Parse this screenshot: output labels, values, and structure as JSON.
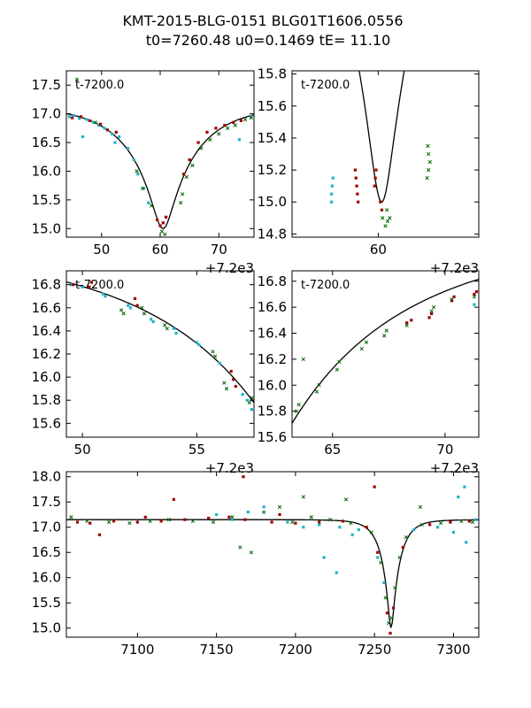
{
  "figure": {
    "title_line1": "KMT-2015-BLG-0151 BLG01T1606.0556",
    "title_line2": "t0=7260.48 u0=0.1469 tE=  11.10"
  },
  "model": {
    "t0": 7260.48,
    "u0": 0.1469,
    "tE": 11.1,
    "mag_base": 17.15,
    "mag_peak_approx": 15.0
  },
  "colors": {
    "green": "#006400",
    "red": "#a00000",
    "cyan": "#1fb4c8",
    "model": "#000000"
  },
  "chart_data": [
    {
      "id": "panel-top-left",
      "type": "scatter",
      "label": "t-7200.0",
      "offset_text": "+7.2e3",
      "xlim": [
        44,
        76
      ],
      "ylim": [
        17.75,
        14.85
      ],
      "xticks": [
        50,
        60,
        70
      ],
      "yticks": [
        15.0,
        15.5,
        16.0,
        16.5,
        17.0,
        17.5
      ],
      "ytick_labels": [
        "15.0",
        "15.5",
        "16.0",
        "16.5",
        "17.0",
        "17.5"
      ],
      "series": [
        {
          "name": "cyan",
          "color": "cyan",
          "points": [
            [
              44.5,
              16.95
            ],
            [
              45.3,
              16.97
            ],
            [
              46.2,
              16.92
            ],
            [
              47.5,
              16.9
            ],
            [
              48.6,
              16.85
            ],
            [
              49.5,
              16.8
            ],
            [
              50.5,
              16.75
            ],
            [
              51.8,
              16.65
            ],
            [
              53.0,
              16.6
            ],
            [
              54.5,
              16.4
            ],
            [
              55.5,
              16.2
            ],
            [
              56.2,
              15.95
            ],
            [
              57.2,
              15.7
            ],
            [
              58.0,
              15.45
            ],
            [
              46.8,
              16.6
            ],
            [
              52.3,
              16.5
            ],
            [
              73.5,
              16.55
            ],
            [
              75.5,
              16.95
            ]
          ]
        },
        {
          "name": "red",
          "color": "red",
          "points": [
            [
              45.0,
              16.93
            ],
            [
              46.5,
              16.95
            ],
            [
              48.0,
              16.88
            ],
            [
              49.8,
              16.82
            ],
            [
              51.0,
              16.72
            ],
            [
              52.5,
              16.68
            ],
            [
              59.5,
              15.15
            ],
            [
              60.0,
              15.05
            ],
            [
              60.5,
              15.1
            ],
            [
              61.0,
              15.2
            ],
            [
              64.0,
              15.95
            ],
            [
              65.0,
              16.2
            ],
            [
              66.5,
              16.5
            ],
            [
              68.0,
              16.68
            ],
            [
              69.5,
              16.75
            ],
            [
              71.0,
              16.8
            ],
            [
              72.5,
              16.85
            ],
            [
              73.8,
              16.88
            ]
          ]
        },
        {
          "name": "green",
          "color": "green",
          "points": [
            [
              56.0,
              16.0
            ],
            [
              57.0,
              15.7
            ],
            [
              58.5,
              15.4
            ],
            [
              60.3,
              14.95
            ],
            [
              60.8,
              14.9
            ],
            [
              63.5,
              15.45
            ],
            [
              63.8,
              15.6
            ],
            [
              64.5,
              15.9
            ],
            [
              65.5,
              16.1
            ],
            [
              67.0,
              16.4
            ],
            [
              68.5,
              16.55
            ],
            [
              70.0,
              16.65
            ],
            [
              71.5,
              16.75
            ],
            [
              72.8,
              16.8
            ],
            [
              74.5,
              16.9
            ],
            [
              75.5,
              16.93
            ],
            [
              45.8,
              17.6
            ],
            [
              49.0,
              16.85
            ]
          ]
        }
      ]
    },
    {
      "id": "panel-top-right",
      "type": "scatter",
      "label": "t-7200.0",
      "offset_text": "+7.2e3",
      "xlim": [
        48,
        74
      ],
      "ylim": [
        15.82,
        14.78
      ],
      "xticks": [
        60
      ],
      "yticks": [
        14.8,
        15.0,
        15.2,
        15.4,
        15.6,
        15.8
      ],
      "ytick_labels": [
        "14.8",
        "15.0",
        "15.2",
        "15.4",
        "15.6",
        "15.8"
      ],
      "series": [
        {
          "name": "cyan",
          "color": "cyan",
          "points": [
            [
              53.5,
              15.05
            ],
            [
              53.6,
              15.1
            ],
            [
              53.7,
              15.15
            ],
            [
              53.5,
              15.0
            ]
          ]
        },
        {
          "name": "red",
          "color": "red",
          "points": [
            [
              56.8,
              15.2
            ],
            [
              56.9,
              15.15
            ],
            [
              57.0,
              15.1
            ],
            [
              57.1,
              15.05
            ],
            [
              57.2,
              15.0
            ],
            [
              59.5,
              15.1
            ],
            [
              59.6,
              15.15
            ],
            [
              59.7,
              15.2
            ],
            [
              60.3,
              15.0
            ],
            [
              60.5,
              14.95
            ]
          ]
        },
        {
          "name": "green",
          "color": "green",
          "points": [
            [
              60.6,
              14.9
            ],
            [
              61.0,
              14.85
            ],
            [
              61.3,
              14.88
            ],
            [
              61.6,
              14.9
            ],
            [
              61.2,
              14.95
            ],
            [
              66.8,
              15.15
            ],
            [
              67.0,
              15.2
            ],
            [
              67.2,
              15.25
            ],
            [
              67.0,
              15.3
            ],
            [
              66.9,
              15.35
            ]
          ]
        }
      ]
    },
    {
      "id": "panel-mid-left",
      "type": "scatter",
      "label": "t-7200.0",
      "offset_text": "+7.2e3",
      "xlim": [
        49.3,
        57.5
      ],
      "ylim": [
        16.92,
        15.48
      ],
      "xticks": [
        50,
        55
      ],
      "yticks": [
        15.6,
        15.8,
        16.0,
        16.2,
        16.4,
        16.6,
        16.8
      ],
      "ytick_labels": [
        "15.6",
        "15.8",
        "16.0",
        "16.2",
        "16.4",
        "16.6",
        "16.8"
      ],
      "series": [
        {
          "name": "cyan",
          "color": "cyan",
          "points": [
            [
              49.5,
              16.8
            ],
            [
              50.0,
              16.78
            ],
            [
              50.9,
              16.72
            ],
            [
              51.0,
              16.7
            ],
            [
              52.0,
              16.62
            ],
            [
              52.1,
              16.6
            ],
            [
              53.0,
              16.5
            ],
            [
              53.1,
              16.48
            ],
            [
              54.0,
              16.42
            ],
            [
              54.1,
              16.38
            ],
            [
              55.0,
              16.3
            ],
            [
              55.1,
              16.28
            ],
            [
              56.0,
              16.12
            ],
            [
              57.0,
              15.85
            ],
            [
              57.2,
              15.8
            ],
            [
              57.4,
              15.72
            ]
          ]
        },
        {
          "name": "red",
          "color": "red",
          "points": [
            [
              49.6,
              16.8
            ],
            [
              50.3,
              16.78
            ],
            [
              50.4,
              16.82
            ],
            [
              52.3,
              16.68
            ],
            [
              52.4,
              16.62
            ],
            [
              56.5,
              16.05
            ],
            [
              56.6,
              15.98
            ],
            [
              56.7,
              15.92
            ]
          ]
        },
        {
          "name": "green",
          "color": "green",
          "points": [
            [
              51.7,
              16.58
            ],
            [
              51.8,
              16.55
            ],
            [
              52.6,
              16.6
            ],
            [
              52.7,
              16.55
            ],
            [
              53.6,
              16.45
            ],
            [
              53.7,
              16.42
            ],
            [
              55.7,
              16.22
            ],
            [
              55.8,
              16.18
            ],
            [
              56.2,
              15.95
            ],
            [
              56.3,
              15.9
            ],
            [
              57.3,
              15.78
            ],
            [
              57.4,
              15.82
            ]
          ]
        }
      ]
    },
    {
      "id": "panel-mid-right",
      "type": "scatter",
      "label": "t-7200.0",
      "offset_text": "+7.2e3",
      "xlim": [
        63.2,
        71.5
      ],
      "ylim": [
        16.88,
        15.6
      ],
      "xticks": [
        65,
        70
      ],
      "yticks": [
        15.6,
        15.8,
        16.0,
        16.2,
        16.4,
        16.6,
        16.8
      ],
      "ytick_labels": [
        "15.6",
        "15.8",
        "16.0",
        "16.2",
        "16.4",
        "16.6",
        "16.8"
      ],
      "series": [
        {
          "name": "cyan",
          "color": "cyan",
          "points": [
            [
              71.3,
              16.62
            ]
          ]
        },
        {
          "name": "red",
          "color": "red",
          "points": [
            [
              68.3,
              16.48
            ],
            [
              68.5,
              16.5
            ],
            [
              69.3,
              16.52
            ],
            [
              69.4,
              16.55
            ],
            [
              70.3,
              16.65
            ],
            [
              70.4,
              16.68
            ],
            [
              71.3,
              16.7
            ],
            [
              71.4,
              16.72
            ]
          ]
        },
        {
          "name": "green",
          "color": "green",
          "points": [
            [
              63.4,
              15.8
            ],
            [
              63.5,
              15.85
            ],
            [
              64.3,
              15.95
            ],
            [
              64.4,
              16.0
            ],
            [
              65.2,
              16.12
            ],
            [
              65.3,
              16.18
            ],
            [
              66.3,
              16.28
            ],
            [
              66.5,
              16.33
            ],
            [
              67.3,
              16.38
            ],
            [
              67.4,
              16.42
            ],
            [
              68.3,
              16.46
            ],
            [
              69.4,
              16.57
            ],
            [
              69.5,
              16.6
            ],
            [
              70.3,
              16.66
            ],
            [
              71.3,
              16.68
            ],
            [
              63.7,
              16.2
            ]
          ]
        }
      ]
    },
    {
      "id": "panel-bottom",
      "type": "scatter",
      "label": "",
      "offset_text": "",
      "xlim": [
        7055,
        7316
      ],
      "ylim": [
        18.1,
        14.82
      ],
      "xticks": [
        7100,
        7150,
        7200,
        7250,
        7300
      ],
      "yticks": [
        15.0,
        15.5,
        16.0,
        16.5,
        17.0,
        17.5,
        18.0
      ],
      "ytick_labels": [
        "15.0",
        "15.5",
        "16.0",
        "16.5",
        "17.0",
        "17.5",
        "18.0"
      ],
      "series": [
        {
          "name": "green",
          "color": "green",
          "points": [
            [
              7058,
              17.2
            ],
            [
              7068,
              17.12
            ],
            [
              7082,
              17.1
            ],
            [
              7095,
              17.08
            ],
            [
              7108,
              17.12
            ],
            [
              7120,
              17.15
            ],
            [
              7135,
              17.12
            ],
            [
              7148,
              17.1
            ],
            [
              7160,
              17.2
            ],
            [
              7165,
              16.6
            ],
            [
              7172,
              16.5
            ],
            [
              7180,
              17.3
            ],
            [
              7190,
              17.4
            ],
            [
              7198,
              17.1
            ],
            [
              7210,
              17.2
            ],
            [
              7222,
              17.15
            ],
            [
              7235,
              17.08
            ],
            [
              7248,
              16.9
            ],
            [
              7254,
              16.3
            ],
            [
              7257,
              15.6
            ],
            [
              7259,
              15.1
            ],
            [
              7261,
              15.2
            ],
            [
              7263,
              15.8
            ],
            [
              7266,
              16.4
            ],
            [
              7270,
              16.8
            ],
            [
              7280,
              17.05
            ],
            [
              7292,
              17.08
            ],
            [
              7305,
              17.12
            ],
            [
              7312,
              17.1
            ],
            [
              7205,
              17.6
            ],
            [
              7232,
              17.55
            ],
            [
              7279,
              17.4
            ]
          ]
        },
        {
          "name": "red",
          "color": "red",
          "points": [
            [
              7062,
              17.1
            ],
            [
              7070,
              17.08
            ],
            [
              7085,
              17.12
            ],
            [
              7100,
              17.1
            ],
            [
              7115,
              17.12
            ],
            [
              7130,
              17.15
            ],
            [
              7145,
              17.18
            ],
            [
              7158,
              17.2
            ],
            [
              7168,
              17.15
            ],
            [
              7185,
              17.1
            ],
            [
              7200,
              17.08
            ],
            [
              7215,
              17.1
            ],
            [
              7230,
              17.12
            ],
            [
              7245,
              17.0
            ],
            [
              7252,
              16.5
            ],
            [
              7258,
              15.3
            ],
            [
              7260,
              14.9
            ],
            [
              7262,
              15.4
            ],
            [
              7268,
              16.6
            ],
            [
              7285,
              17.05
            ],
            [
              7298,
              17.1
            ],
            [
              7310,
              17.12
            ],
            [
              7076,
              16.85
            ],
            [
              7123,
              17.55
            ],
            [
              7167,
              18.0
            ],
            [
              7250,
              17.8
            ],
            [
              7190,
              17.25
            ],
            [
              7105,
              17.2
            ]
          ]
        },
        {
          "name": "cyan",
          "color": "cyan",
          "points": [
            [
              7150,
              17.25
            ],
            [
              7160,
              17.15
            ],
            [
              7170,
              17.3
            ],
            [
              7180,
              17.4
            ],
            [
              7195,
              17.1
            ],
            [
              7205,
              17.0
            ],
            [
              7215,
              17.05
            ],
            [
              7228,
              17.0
            ],
            [
              7240,
              16.95
            ],
            [
              7252,
              16.4
            ],
            [
              7256,
              15.9
            ],
            [
              7275,
              16.95
            ],
            [
              7290,
              17.0
            ],
            [
              7300,
              16.9
            ],
            [
              7308,
              16.7
            ],
            [
              7314,
              17.15
            ],
            [
              7218,
              16.4
            ],
            [
              7226,
              16.1
            ],
            [
              7236,
              16.85
            ],
            [
              7303,
              17.6
            ],
            [
              7307,
              17.8
            ]
          ]
        }
      ]
    }
  ]
}
